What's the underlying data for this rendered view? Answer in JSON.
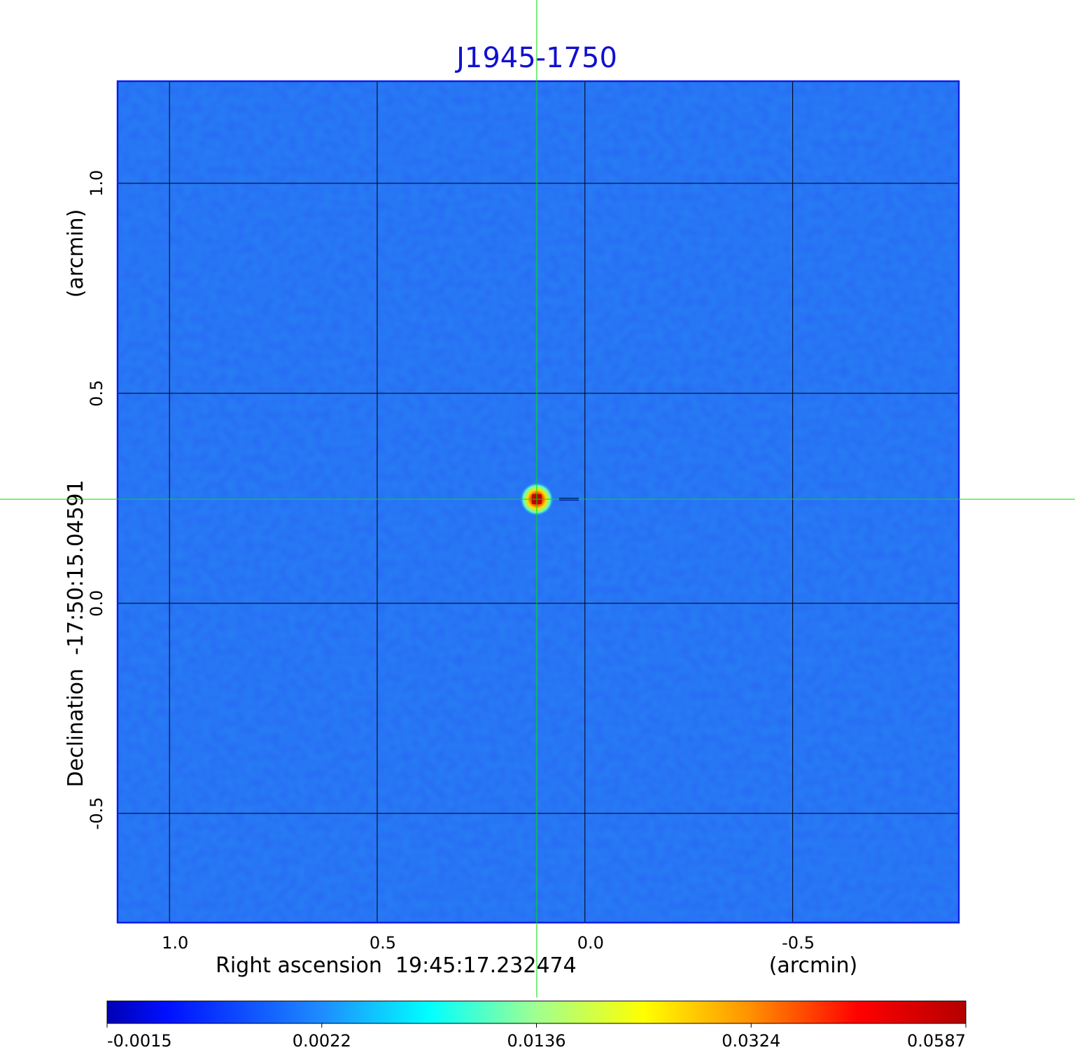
{
  "chart_data": {
    "type": "image",
    "title": "J1945-1750",
    "xlabel": "Right ascension  19:45:17.232474",
    "xunit": "(arcmin)",
    "ylabel": "Declination  -17:50:15.04591",
    "yunit": "(arcmin)",
    "xlim": [
      1.125,
      -0.9
    ],
    "ylim": [
      -0.76,
      1.243
    ],
    "xticks": [
      {
        "value": 1,
        "label": "1.0"
      },
      0.5,
      {
        "value": 0,
        "label": "0.0"
      },
      -0.5
    ],
    "yticks": [
      {
        "value": 1,
        "label": "1.0"
      },
      0.5,
      {
        "value": 0,
        "label": "0.0"
      },
      -0.5
    ],
    "grid": true,
    "marker": {
      "x": 0.116,
      "y": 0.248,
      "color": "#00e000"
    },
    "colorbar": {
      "ticks": [
        -0.0015,
        0.0022,
        0.0136,
        0.0324,
        0.0587
      ]
    }
  }
}
